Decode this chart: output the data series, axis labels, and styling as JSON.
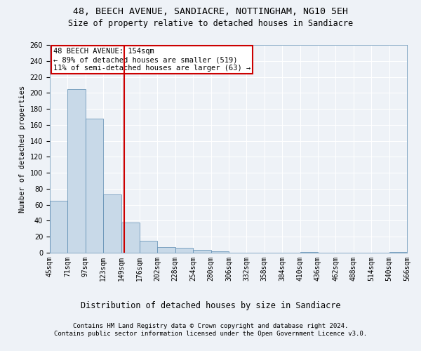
{
  "title1": "48, BEECH AVENUE, SANDIACRE, NOTTINGHAM, NG10 5EH",
  "title2": "Size of property relative to detached houses in Sandiacre",
  "xlabel": "Distribution of detached houses by size in Sandiacre",
  "ylabel": "Number of detached properties",
  "bar_values": [
    65,
    205,
    168,
    73,
    38,
    15,
    7,
    6,
    3,
    2,
    0,
    0,
    0,
    0,
    1,
    0,
    0,
    0,
    0,
    1
  ],
  "bin_edges": [
    45,
    71,
    97,
    123,
    149,
    176,
    202,
    228,
    254,
    280,
    306,
    332,
    358,
    384,
    410,
    436,
    462,
    488,
    514,
    540,
    566
  ],
  "bar_color": "#c8d9e8",
  "bar_edge_color": "#5a8ab0",
  "bg_color": "#eef2f7",
  "grid_color": "#ffffff",
  "vline_color": "#cc0000",
  "annotation_line1": "48 BEECH AVENUE: 154sqm",
  "annotation_line2": "← 89% of detached houses are smaller (519)",
  "annotation_line3": "11% of semi-detached houses are larger (63) →",
  "annotation_box_color": "#cc0000",
  "annotation_bg": "#ffffff",
  "ylim": [
    0,
    260
  ],
  "yticks": [
    0,
    20,
    40,
    60,
    80,
    100,
    120,
    140,
    160,
    180,
    200,
    220,
    240,
    260
  ],
  "footer1": "Contains HM Land Registry data © Crown copyright and database right 2024.",
  "footer2": "Contains public sector information licensed under the Open Government Licence v3.0.",
  "title1_fontsize": 9.5,
  "title2_fontsize": 8.5,
  "xlabel_fontsize": 8.5,
  "ylabel_fontsize": 7.5,
  "tick_fontsize": 7,
  "annotation_fontsize": 7.5,
  "footer_fontsize": 6.5
}
